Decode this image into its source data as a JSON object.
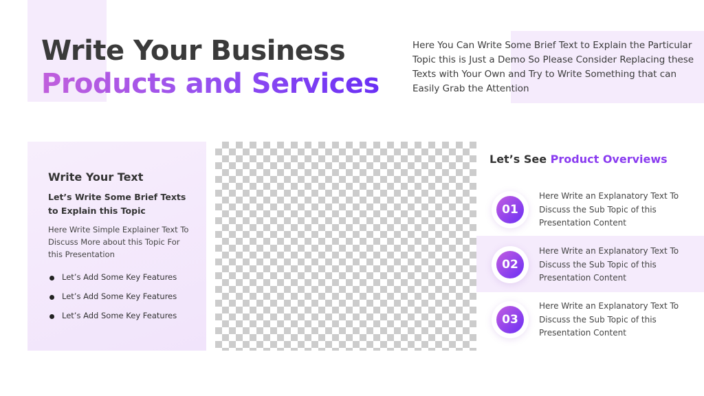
{
  "colors": {
    "accent_start": "#c05fdc",
    "accent_end": "#6a2ff5",
    "panel": "#f5ebfc",
    "text": "#3a3a3a"
  },
  "header": {
    "title_line1": "Write Your Business",
    "title_line2": "Products and Services",
    "intro": "Here You Can Write Some Brief Text to Explain the Particular Topic this is Just a Demo So Please Consider Replacing these Texts with Your Own and Try to Write Something that can Easily Grab the Attention"
  },
  "card": {
    "heading": "Write Your Text",
    "subheading": "Let’s Write Some Brief Texts to Explain this Topic",
    "body": "Here Write Simple Explainer Text To Discuss More about this Topic For this Presentation",
    "bullets": [
      "Let’s Add Some Key Features",
      "Let’s Add Some Key Features",
      "Let’s Add Some Key Features"
    ]
  },
  "overview": {
    "title_prefix": "Let’s See",
    "title_accent": "Product Overviews",
    "items": [
      {
        "number": "01",
        "text": "Here Write an Explanatory Text To Discuss the Sub Topic of this Presentation Content"
      },
      {
        "number": "02",
        "text": "Here Write an Explanatory Text To Discuss the Sub Topic of this Presentation Content"
      },
      {
        "number": "03",
        "text": "Here Write an Explanatory Text To Discuss the Sub Topic of this Presentation Content"
      }
    ]
  }
}
